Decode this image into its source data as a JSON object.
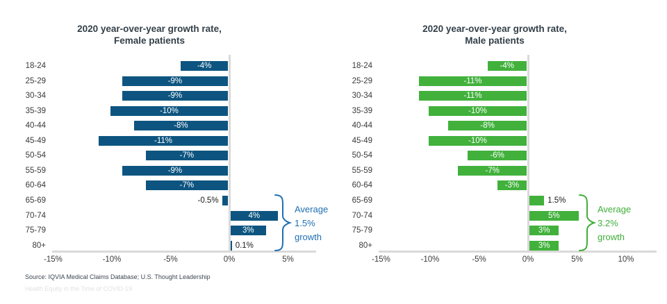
{
  "page": {
    "source_note": "Source: IQVIA Medical Claims Database; U.S. Thought Leadership",
    "watermark": "Health Equity in the Time of COVID-19"
  },
  "chart_data": [
    {
      "type": "bar",
      "orientation": "horizontal",
      "title": "2020 year-over-year growth rate, Female patients",
      "title_lines": [
        "2020 year-over-year growth rate,",
        "Female patients"
      ],
      "categories": [
        "18-24",
        "25-29",
        "30-34",
        "35-39",
        "40-44",
        "45-49",
        "50-54",
        "55-59",
        "60-64",
        "65-69",
        "70-74",
        "75-79",
        "80+"
      ],
      "values": [
        -4,
        -9,
        -9,
        -10,
        -8,
        -11,
        -7,
        -9,
        -7,
        -0.5,
        4,
        3,
        0.1
      ],
      "labels": [
        "-4%",
        "-9%",
        "-9%",
        "-10%",
        "-8%",
        "-11%",
        "-7%",
        "-9%",
        "-7%",
        "-0.5%",
        "4%",
        "3%",
        "0.1%"
      ],
      "label_placement": [
        "in",
        "in",
        "in",
        "in",
        "in",
        "in",
        "in",
        "in",
        "in",
        "out",
        "in",
        "in",
        "out"
      ],
      "xlim": [
        -15,
        5
      ],
      "tick_values": [
        -15,
        -10,
        -5,
        0,
        5
      ],
      "tick_labels": [
        "-15%",
        "-10%",
        "-5%",
        "0%",
        "5%"
      ],
      "bar_color": "#0d5580",
      "accent_color": "#1e6fb2",
      "grid": "zero-line-only",
      "legend": "none",
      "annotation": {
        "lines": [
          "Average",
          "1.5%",
          "growth"
        ],
        "text": "Average 1.5% growth",
        "rows_spanned": [
          "65-69",
          "80+"
        ]
      }
    },
    {
      "type": "bar",
      "orientation": "horizontal",
      "title": "2020 year-over-year growth rate, Male patients",
      "title_lines": [
        "2020 year-over-year growth rate,",
        "Male patients"
      ],
      "categories": [
        "18-24",
        "25-29",
        "30-34",
        "35-39",
        "40-44",
        "45-49",
        "50-54",
        "55-59",
        "60-64",
        "65-69",
        "70-74",
        "75-79",
        "80+"
      ],
      "values": [
        -4,
        -11,
        -11,
        -10,
        -8,
        -10,
        -6,
        -7,
        -3,
        1.5,
        5,
        3,
        3
      ],
      "labels": [
        "-4%",
        "-11%",
        "-11%",
        "-10%",
        "-8%",
        "-10%",
        "-6%",
        "-7%",
        "-3%",
        "1.5%",
        "5%",
        "3%",
        "3%"
      ],
      "label_placement": [
        "in",
        "in",
        "in",
        "in",
        "in",
        "in",
        "in",
        "in",
        "in",
        "out",
        "in",
        "in",
        "in"
      ],
      "xlim": [
        -15,
        10
      ],
      "tick_values": [
        -15,
        -10,
        -5,
        0,
        5,
        10
      ],
      "tick_labels": [
        "-15%",
        "-10%",
        "-5%",
        "0%",
        "5%",
        "10%"
      ],
      "bar_color": "#41b13c",
      "accent_color": "#3fae39",
      "grid": "zero-line-only",
      "legend": "none",
      "annotation": {
        "lines": [
          "Average",
          "3.2%",
          "growth"
        ],
        "text": "Average 3.2% growth",
        "rows_spanned": [
          "65-69",
          "80+"
        ]
      }
    }
  ]
}
